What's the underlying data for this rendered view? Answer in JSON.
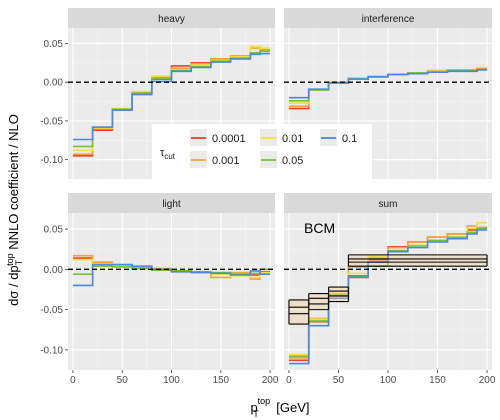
{
  "chart_data": {
    "type": "line",
    "title": "",
    "xlabel_main": "p",
    "xlabel_sup": "top",
    "xlabel_sub": "T",
    "xlabel_tail": " [GeV]",
    "ylabel_parts": [
      "dσ / dp",
      "T",
      "top",
      " NNLO coefficient / NLO"
    ],
    "xlim": [
      -5,
      205
    ],
    "x_ticks": [
      0,
      50,
      100,
      150,
      200
    ],
    "x_edges": [
      0,
      20,
      40,
      60,
      80,
      100,
      120,
      140,
      160,
      180,
      190,
      200
    ],
    "legend": {
      "title": "τ",
      "title_sub": "cut",
      "placement": "center",
      "entries": [
        {
          "label": "0.0001",
          "color": "#e8412c"
        },
        {
          "label": "0.001",
          "color": "#f7a13a"
        },
        {
          "label": "0.01",
          "color": "#f2e13a"
        },
        {
          "label": "0.05",
          "color": "#73c238"
        },
        {
          "label": "0.1",
          "color": "#4a87e0"
        }
      ]
    },
    "panels": [
      {
        "name": "heavy",
        "ylim": [
          -0.125,
          0.07
        ],
        "y_ticks": [
          -0.1,
          -0.05,
          0.0,
          0.05
        ],
        "y_tick_labels": [
          "-0.10",
          "-0.05",
          "0.00",
          "0.05"
        ],
        "series": [
          {
            "tau": "0.0001",
            "color": "#e8412c",
            "values": [
              -0.095,
              -0.062,
              -0.036,
              -0.015,
              0.004,
              0.021,
              0.025,
              0.03,
              0.034,
              0.038,
              0.041
            ]
          },
          {
            "tau": "0.001",
            "color": "#f7a13a",
            "values": [
              -0.093,
              -0.06,
              -0.035,
              -0.013,
              0.006,
              0.018,
              0.024,
              0.03,
              0.034,
              0.044,
              0.042
            ]
          },
          {
            "tau": "0.01",
            "color": "#f2e13a",
            "values": [
              -0.088,
              -0.059,
              -0.034,
              -0.012,
              0.008,
              0.016,
              0.022,
              0.028,
              0.033,
              0.046,
              0.044
            ]
          },
          {
            "tau": "0.05",
            "color": "#73c238",
            "values": [
              -0.083,
              -0.058,
              -0.035,
              -0.014,
              0.005,
              0.015,
              0.02,
              0.027,
              0.031,
              0.038,
              0.04
            ]
          },
          {
            "tau": "0.1",
            "color": "#4a87e0",
            "values": [
              -0.074,
              -0.058,
              -0.036,
              -0.016,
              0.001,
              0.014,
              0.019,
              0.026,
              0.03,
              0.036,
              0.037
            ]
          }
        ],
        "bands": []
      },
      {
        "name": "interference",
        "ylim": [
          -0.125,
          0.07
        ],
        "y_ticks": [
          -0.1,
          -0.05,
          0.0,
          0.05
        ],
        "y_tick_labels": [
          "-0.10",
          "-0.05",
          "0.00",
          "0.05"
        ],
        "series": [
          {
            "tau": "0.0001",
            "color": "#e8412c",
            "values": [
              -0.034,
              -0.01,
              -0.001,
              0.004,
              0.007,
              0.01,
              0.012,
              0.014,
              0.016,
              0.016,
              0.017
            ]
          },
          {
            "tau": "0.001",
            "color": "#f7a13a",
            "values": [
              -0.031,
              -0.01,
              0.0,
              0.005,
              0.008,
              0.01,
              0.012,
              0.015,
              0.016,
              0.016,
              0.018
            ]
          },
          {
            "tau": "0.01",
            "color": "#f2e13a",
            "values": [
              -0.027,
              -0.01,
              -0.001,
              0.004,
              0.008,
              0.01,
              0.012,
              0.014,
              0.015,
              0.015,
              0.016
            ]
          },
          {
            "tau": "0.05",
            "color": "#73c238",
            "values": [
              -0.024,
              -0.01,
              -0.001,
              0.004,
              0.007,
              0.01,
              0.012,
              0.013,
              0.015,
              0.015,
              0.016
            ]
          },
          {
            "tau": "0.1",
            "color": "#4a87e0",
            "values": [
              -0.02,
              -0.009,
              -0.001,
              0.004,
              0.007,
              0.01,
              0.011,
              0.013,
              0.014,
              0.014,
              0.016
            ]
          }
        ],
        "bands": []
      },
      {
        "name": "light",
        "ylim": [
          -0.125,
          0.07
        ],
        "y_ticks": [
          -0.1,
          -0.05,
          0.0,
          0.05
        ],
        "y_tick_labels": [
          "-0.10",
          "-0.05",
          "0.00",
          "0.05"
        ],
        "series": [
          {
            "tau": "0.0001",
            "color": "#e8412c",
            "values": [
              0.014,
              0.008,
              0.004,
              0.002,
              0.0,
              -0.002,
              -0.003,
              -0.005,
              -0.006,
              -0.007,
              -0.003
            ]
          },
          {
            "tau": "0.001",
            "color": "#f7a13a",
            "values": [
              0.017,
              0.009,
              0.005,
              0.003,
              0.001,
              -0.002,
              -0.003,
              -0.01,
              -0.004,
              -0.012,
              -0.006
            ]
          },
          {
            "tau": "0.01",
            "color": "#f2e13a",
            "values": [
              0.012,
              0.007,
              0.004,
              0.001,
              0.0,
              -0.003,
              -0.004,
              -0.006,
              -0.008,
              -0.01,
              -0.004
            ]
          },
          {
            "tau": "0.05",
            "color": "#73c238",
            "values": [
              -0.006,
              0.004,
              0.003,
              0.001,
              -0.001,
              -0.002,
              -0.003,
              -0.004,
              -0.006,
              -0.005,
              0.0
            ]
          },
          {
            "tau": "0.1",
            "color": "#4a87e0",
            "values": [
              -0.02,
              0.006,
              0.006,
              0.004,
              0.0,
              -0.003,
              -0.004,
              -0.005,
              -0.007,
              -0.002,
              -0.006
            ]
          }
        ],
        "bands": []
      },
      {
        "name": "sum",
        "annotation": "BCM",
        "ylim": [
          -0.125,
          0.07
        ],
        "y_ticks": [
          -0.1,
          -0.05,
          0.0,
          0.05
        ],
        "y_tick_labels": [
          "-0.10",
          "-0.05",
          "0.00",
          "0.05"
        ],
        "series": [
          {
            "tau": "0.0001",
            "color": "#e8412c",
            "values": [
              -0.113,
              -0.065,
              -0.033,
              -0.01,
              0.012,
              0.028,
              0.034,
              0.04,
              0.044,
              0.049,
              0.052
            ]
          },
          {
            "tau": "0.001",
            "color": "#f7a13a",
            "values": [
              -0.11,
              -0.061,
              -0.03,
              0.003,
              0.014,
              0.027,
              0.034,
              0.04,
              0.044,
              0.054,
              0.052
            ]
          },
          {
            "tau": "0.01",
            "color": "#f2e13a",
            "values": [
              -0.106,
              -0.062,
              -0.031,
              -0.005,
              0.016,
              0.024,
              0.03,
              0.036,
              0.04,
              0.051,
              0.058
            ]
          },
          {
            "tau": "0.05",
            "color": "#73c238",
            "values": [
              -0.108,
              -0.064,
              -0.032,
              -0.009,
              0.004,
              0.023,
              0.029,
              0.036,
              0.04,
              0.046,
              0.051
            ]
          },
          {
            "tau": "0.1",
            "color": "#4a87e0",
            "values": [
              -0.117,
              -0.07,
              -0.036,
              -0.008,
              0.009,
              0.022,
              0.027,
              0.034,
              0.038,
              0.044,
              0.049
            ]
          }
        ],
        "bands": [
          {
            "x0": 0,
            "x1": 20,
            "lines": [
              -0.038,
              -0.047,
              -0.055,
              -0.068
            ]
          },
          {
            "x0": 20,
            "x1": 40,
            "lines": [
              -0.03,
              -0.036,
              -0.043,
              -0.05
            ]
          },
          {
            "x0": 40,
            "x1": 60,
            "lines": [
              -0.022,
              -0.027,
              -0.033,
              -0.04
            ]
          },
          {
            "x0": 60,
            "x1": 200,
            "lines": [
              0.018,
              0.013,
              0.009,
              0.004
            ]
          }
        ]
      }
    ]
  }
}
